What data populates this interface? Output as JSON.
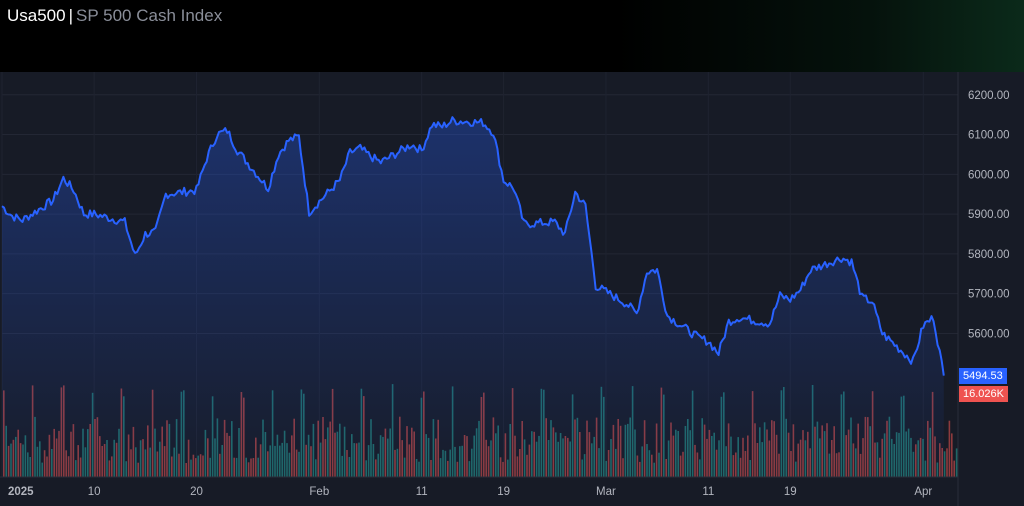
{
  "header": {
    "symbol": "Usa500",
    "separator": "|",
    "description": "SP 500 Cash Index"
  },
  "colors": {
    "line": "#2962ff",
    "volume_up": "#26a69a",
    "volume_down": "#ef5350",
    "last_price_tag": "#2962ff",
    "volume_tag": "#ef5350"
  },
  "last_price_label": "5494.53",
  "last_volume_label": "16.026K",
  "chart_data": {
    "type": "area",
    "title": "",
    "xlabel": "",
    "ylabel": "",
    "ylim": [
      5390,
      6240
    ],
    "y_ticks": [
      "6200.00",
      "6100.00",
      "6000.00",
      "5900.00",
      "5800.00",
      "5700.00",
      "5600.00"
    ],
    "x_ticks": [
      "2025",
      "10",
      "20",
      "Feb",
      "11",
      "19",
      "Mar",
      "11",
      "19",
      "Apr"
    ],
    "grid": true,
    "series": [
      {
        "x": [
          "2025-01-01",
          "2025-01-02",
          "2025-01-03",
          "2025-01-06",
          "2025-01-07",
          "2025-01-08",
          "2025-01-09",
          "2025-01-10",
          "2025-01-13",
          "2025-01-14",
          "2025-01-15",
          "2025-01-16",
          "2025-01-17",
          "2025-01-20",
          "2025-01-21",
          "2025-01-22",
          "2025-01-23",
          "2025-01-24",
          "2025-01-27",
          "2025-01-28",
          "2025-01-29",
          "2025-01-30",
          "2025-01-31",
          "2025-02-03",
          "2025-02-04",
          "2025-02-05",
          "2025-02-06",
          "2025-02-07",
          "2025-02-10",
          "2025-02-11",
          "2025-02-12",
          "2025-02-13",
          "2025-02-14",
          "2025-02-17",
          "2025-02-18",
          "2025-02-19",
          "2025-02-20",
          "2025-02-21",
          "2025-02-24",
          "2025-02-25",
          "2025-02-26",
          "2025-02-27",
          "2025-02-28",
          "2025-03-03",
          "2025-03-04",
          "2025-03-05",
          "2025-03-06",
          "2025-03-07",
          "2025-03-10",
          "2025-03-11",
          "2025-03-12",
          "2025-03-13",
          "2025-03-14",
          "2025-03-17",
          "2025-03-18",
          "2025-03-19",
          "2025-03-20",
          "2025-03-21",
          "2025-03-24",
          "2025-03-25",
          "2025-03-26",
          "2025-03-27",
          "2025-03-28",
          "2025-03-31",
          "2025-04-01",
          "2025-04-02",
          "2025-04-03"
        ],
        "values": [
          5920,
          5895,
          5885,
          5935,
          5990,
          5960,
          5900,
          5900,
          5880,
          5795,
          5850,
          5855,
          5950,
          5960,
          6040,
          6100,
          6110,
          6060,
          5965,
          6050,
          6085,
          6095,
          5905,
          5985,
          6055,
          6065,
          6045,
          6030,
          6075,
          6060,
          6125,
          6120,
          6135,
          6130,
          6105,
          5985,
          5965,
          5875,
          5880,
          5850,
          5955,
          5920,
          5720,
          5675,
          5650,
          5755,
          5760,
          5645,
          5590,
          5580,
          5550,
          5630,
          5640,
          5625,
          5695,
          5685,
          5710,
          5760,
          5790,
          5780,
          5690,
          5680,
          5600,
          5530,
          5620,
          5640,
          5494
        ]
      }
    ]
  }
}
